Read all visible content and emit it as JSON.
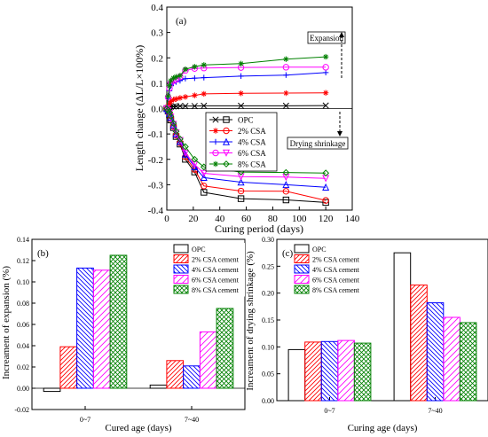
{
  "chart_data": [
    {
      "type": "line",
      "panel_label": "(a)",
      "xlabel": "Curing period (days)",
      "ylabel": "Length change (ΔL/L×100%)",
      "xlim": [
        0,
        140
      ],
      "ylim": [
        -0.4,
        0.4
      ],
      "x_ticks": [
        "0",
        "20",
        "40",
        "60",
        "80",
        "100",
        "120",
        "140"
      ],
      "y_ticks": [
        "0.4",
        "0.3",
        "0.2",
        "0.1",
        "0.0",
        "-0.1",
        "-0.2",
        "-0.3",
        "-0.4"
      ],
      "annotations": [
        "Expansion",
        "Drying shrinkage"
      ],
      "legend_position": "center-right",
      "series": [
        {
          "name": "OPC",
          "group": "expansion",
          "color": "#000000",
          "marker": "x",
          "x": [
            0,
            1,
            2,
            3,
            5,
            7,
            10,
            14,
            21,
            28,
            56,
            90,
            120
          ],
          "y": [
            0,
            0.003,
            0.005,
            0.007,
            0.008,
            0.009,
            0.01,
            0.01,
            0.01,
            0.011,
            0.011,
            0.011,
            0.012
          ]
        },
        {
          "name": "2% CSA",
          "group": "expansion",
          "color": "#ff0000",
          "marker": "star",
          "x": [
            0,
            1,
            2,
            3,
            5,
            7,
            10,
            14,
            21,
            28,
            56,
            90,
            120
          ],
          "y": [
            0,
            0.012,
            0.02,
            0.028,
            0.035,
            0.038,
            0.042,
            0.046,
            0.052,
            0.058,
            0.06,
            0.061,
            0.062
          ]
        },
        {
          "name": "4% CSA",
          "group": "expansion",
          "color": "#0000ff",
          "marker": "plus",
          "x": [
            0,
            1,
            2,
            3,
            5,
            7,
            10,
            14,
            21,
            28,
            56,
            90,
            120
          ],
          "y": [
            0,
            0.04,
            0.07,
            0.09,
            0.1,
            0.105,
            0.11,
            0.118,
            0.12,
            0.122,
            0.128,
            0.132,
            0.142
          ]
        },
        {
          "name": "6% CSA",
          "group": "expansion",
          "color": "#ff00ff",
          "marker": "circle",
          "x": [
            0,
            1,
            2,
            3,
            5,
            7,
            10,
            14,
            21,
            28,
            56,
            90,
            120
          ],
          "y": [
            0,
            0.045,
            0.08,
            0.1,
            0.11,
            0.115,
            0.125,
            0.15,
            0.158,
            0.16,
            0.162,
            0.163,
            0.163
          ]
        },
        {
          "name": "8% CSA",
          "group": "expansion",
          "color": "#008000",
          "marker": "star",
          "x": [
            0,
            1,
            2,
            3,
            5,
            7,
            10,
            14,
            21,
            28,
            56,
            90,
            120
          ],
          "y": [
            0,
            0.05,
            0.09,
            0.11,
            0.12,
            0.125,
            0.13,
            0.155,
            0.165,
            0.172,
            0.177,
            0.195,
            0.204
          ]
        },
        {
          "name": "OPC",
          "group": "drying-shrinkage",
          "color": "#000000",
          "marker": "square",
          "x": [
            0,
            1,
            2,
            3,
            5,
            7,
            10,
            14,
            21,
            28,
            56,
            90,
            120
          ],
          "y": [
            0,
            -0.01,
            -0.025,
            -0.045,
            -0.075,
            -0.11,
            -0.14,
            -0.2,
            -0.25,
            -0.33,
            -0.355,
            -0.36,
            -0.37
          ]
        },
        {
          "name": "2% CSA",
          "group": "drying-shrinkage",
          "color": "#ff0000",
          "marker": "circle",
          "x": [
            0,
            1,
            2,
            3,
            5,
            7,
            10,
            14,
            21,
            28,
            56,
            90,
            120
          ],
          "y": [
            0,
            -0.01,
            -0.022,
            -0.04,
            -0.07,
            -0.105,
            -0.135,
            -0.19,
            -0.24,
            -0.305,
            -0.325,
            -0.326,
            -0.362
          ]
        },
        {
          "name": "4% CSA",
          "group": "drying-shrinkage",
          "color": "#0000ff",
          "marker": "triangle-up",
          "x": [
            0,
            1,
            2,
            3,
            5,
            7,
            10,
            14,
            21,
            28,
            56,
            90,
            120
          ],
          "y": [
            0,
            -0.008,
            -0.02,
            -0.035,
            -0.065,
            -0.1,
            -0.13,
            -0.18,
            -0.23,
            -0.272,
            -0.29,
            -0.3,
            -0.31
          ]
        },
        {
          "name": "6% CSA",
          "group": "drying-shrinkage",
          "color": "#ff00ff",
          "marker": "triangle-down",
          "x": [
            0,
            1,
            2,
            3,
            5,
            7,
            10,
            14,
            21,
            28,
            56,
            90,
            120
          ],
          "y": [
            0,
            -0.008,
            -0.018,
            -0.033,
            -0.062,
            -0.095,
            -0.125,
            -0.175,
            -0.22,
            -0.255,
            -0.268,
            -0.27,
            -0.275
          ]
        },
        {
          "name": "8% CSA",
          "group": "drying-shrinkage",
          "color": "#008000",
          "marker": "diamond",
          "x": [
            0,
            1,
            2,
            3,
            5,
            7,
            10,
            14,
            21,
            28,
            56,
            90,
            120
          ],
          "y": [
            0,
            -0.006,
            -0.015,
            -0.03,
            -0.058,
            -0.09,
            -0.12,
            -0.15,
            -0.2,
            -0.23,
            -0.25,
            -0.252,
            -0.254
          ]
        }
      ],
      "legend": [
        {
          "name": "OPC",
          "color": "#000000",
          "marker": "x",
          "marker2": "square"
        },
        {
          "name": "2% CSA",
          "color": "#ff0000",
          "marker": "star",
          "marker2": "circle"
        },
        {
          "name": "4% CSA",
          "color": "#0000ff",
          "marker": "plus",
          "marker2": "triangle-up"
        },
        {
          "name": "6% CSA",
          "color": "#ff00ff",
          "marker": "circle",
          "marker2": "triangle-down"
        },
        {
          "name": "8% CSA",
          "color": "#008000",
          "marker": "star",
          "marker2": "diamond"
        }
      ]
    },
    {
      "type": "bar",
      "panel_label": "(b)",
      "xlabel": "Cured age (days)",
      "ylabel": "Increament of expansion (%)",
      "categories": [
        "0~7",
        "7~40"
      ],
      "ylim": [
        -0.02,
        0.14
      ],
      "y_ticks": [
        "0.14",
        "0.12",
        "0.10",
        "0.08",
        "0.06",
        "0.04",
        "0.02",
        "0.00",
        "-0.02"
      ],
      "legend_position": "top-right",
      "series": [
        {
          "name": "OPC",
          "color": "#000000",
          "pattern": "none",
          "values": [
            -0.003,
            0.003
          ]
        },
        {
          "name": "2% CSA cement",
          "color": "#ff0000",
          "pattern": "diag-right",
          "values": [
            0.039,
            0.026
          ]
        },
        {
          "name": "4% CSA cement",
          "color": "#0000ff",
          "pattern": "diag-left",
          "values": [
            0.113,
            0.021
          ]
        },
        {
          "name": "6% CSA cement",
          "color": "#ff00ff",
          "pattern": "diag-right",
          "values": [
            0.111,
            0.053
          ]
        },
        {
          "name": "8% CSA cement",
          "color": "#008000",
          "pattern": "crosshatch",
          "values": [
            0.125,
            0.075
          ]
        }
      ]
    },
    {
      "type": "bar",
      "panel_label": "(c)",
      "xlabel": "Curing age (days)",
      "ylabel": "Increament of drying shrinkage (%)",
      "categories": [
        "0~7",
        "7~40"
      ],
      "ylim": [
        0,
        0.3
      ],
      "y_ticks": [
        "0.30",
        "0.25",
        "0.20",
        "0.15",
        "0.10",
        "0.05",
        "0.00"
      ],
      "legend_position": "top-left",
      "series": [
        {
          "name": "OPC",
          "color": "#000000",
          "pattern": "none",
          "values": [
            0.095,
            0.275
          ]
        },
        {
          "name": "2% CSA cement",
          "color": "#ff0000",
          "pattern": "diag-right",
          "values": [
            0.109,
            0.215
          ]
        },
        {
          "name": "4% CSA cement",
          "color": "#0000ff",
          "pattern": "diag-left",
          "values": [
            0.11,
            0.182
          ]
        },
        {
          "name": "6% CSA cement",
          "color": "#ff00ff",
          "pattern": "diag-right",
          "values": [
            0.112,
            0.155
          ]
        },
        {
          "name": "8% CSA cement",
          "color": "#008000",
          "pattern": "crosshatch",
          "values": [
            0.107,
            0.145
          ]
        }
      ]
    }
  ]
}
